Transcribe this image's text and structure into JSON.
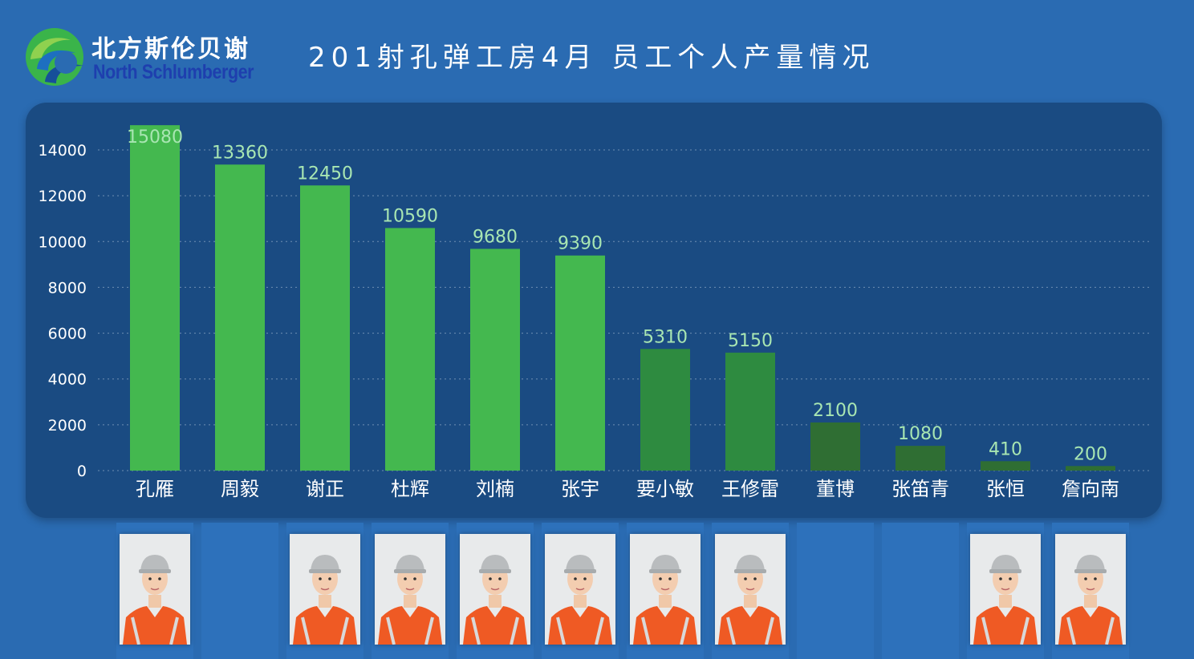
{
  "header": {
    "brand_cn": "北方斯伦贝谢",
    "brand_en": "North Schlumberger",
    "title": "201射孔弹工房4月 员工个人产量情况"
  },
  "colors": {
    "background": "#2a6bb2",
    "panel": "#1a4b82",
    "bar_light": "#44b84f",
    "bar_mid": "#2e8b40",
    "bar_dark": "#2f6e33",
    "value_label": "#a8e6b2",
    "axis_text": "#ffffff"
  },
  "chart_data": {
    "type": "bar",
    "categories": [
      "孔雁",
      "周毅",
      "谢正",
      "杜辉",
      "刘楠",
      "张宇",
      "要小敏",
      "王修雷",
      "董博",
      "张笛青",
      "张恒",
      "詹向南"
    ],
    "values": [
      15080,
      13360,
      12450,
      10590,
      9680,
      9390,
      5310,
      5150,
      2100,
      1080,
      410,
      200
    ],
    "yticks": [
      0,
      2000,
      4000,
      6000,
      8000,
      10000,
      12000,
      14000
    ],
    "ylim": [
      0,
      15080
    ],
    "grid": true,
    "title": "",
    "xlabel": "",
    "ylabel": ""
  },
  "photos": {
    "icon": "employee-photo",
    "present": [
      true,
      false,
      true,
      true,
      true,
      true,
      true,
      true,
      false,
      false,
      true,
      true
    ]
  }
}
